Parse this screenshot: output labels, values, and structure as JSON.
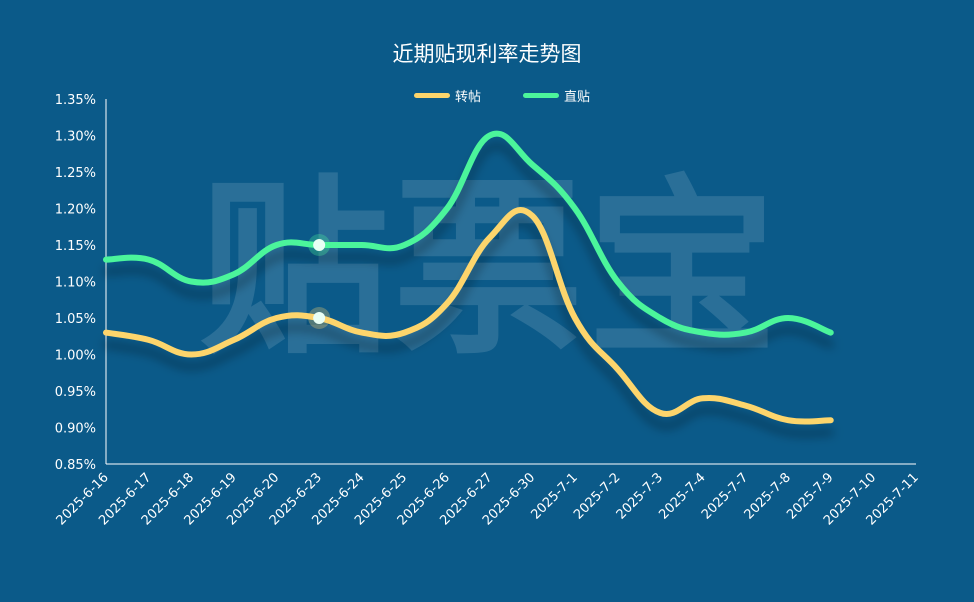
{
  "chart_data": {
    "type": "line",
    "title": "近期贴现利率走势图",
    "watermark": "贴票宝",
    "categories": [
      "2025-6-16",
      "2025-6-17",
      "2025-6-18",
      "2025-6-19",
      "2025-6-20",
      "2025-6-23",
      "2025-6-24",
      "2025-6-25",
      "2025-6-26",
      "2025-6-27",
      "2025-6-30",
      "2025-7-1",
      "2025-7-2",
      "2025-7-3",
      "2025-7-4",
      "2025-7-7",
      "2025-7-8",
      "2025-7-9",
      "2025-7-10",
      "2025-7-11"
    ],
    "y_ticks": [
      "0.85%",
      "0.90%",
      "0.95%",
      "1.00%",
      "1.05%",
      "1.10%",
      "1.15%",
      "1.20%",
      "1.25%",
      "1.30%",
      "1.35%"
    ],
    "ylim": [
      0.85,
      1.35
    ],
    "y_unit": "%",
    "legend_position": "top-center",
    "grid": false,
    "series": [
      {
        "name": "转帖",
        "color": "#fdd56c",
        "values": [
          1.03,
          1.02,
          1.0,
          1.02,
          1.05,
          1.05,
          1.03,
          1.03,
          1.07,
          1.16,
          1.19,
          1.05,
          0.98,
          0.92,
          0.94,
          0.93,
          0.91,
          0.91,
          null,
          null
        ]
      },
      {
        "name": "直贴",
        "color": "#4cf59b",
        "values": [
          1.13,
          1.13,
          1.1,
          1.11,
          1.15,
          1.15,
          1.15,
          1.15,
          1.2,
          1.3,
          1.26,
          1.2,
          1.1,
          1.05,
          1.03,
          1.03,
          1.05,
          1.03,
          null,
          null
        ]
      }
    ],
    "highlighted_points": [
      {
        "series": "直贴",
        "category": "2025-6-23",
        "value": 1.15
      },
      {
        "series": "转帖",
        "category": "2025-6-23",
        "value": 1.05
      }
    ],
    "colors": {
      "background": "#0b5a89",
      "axis": "#ffffff",
      "text": "#ffffff"
    }
  }
}
